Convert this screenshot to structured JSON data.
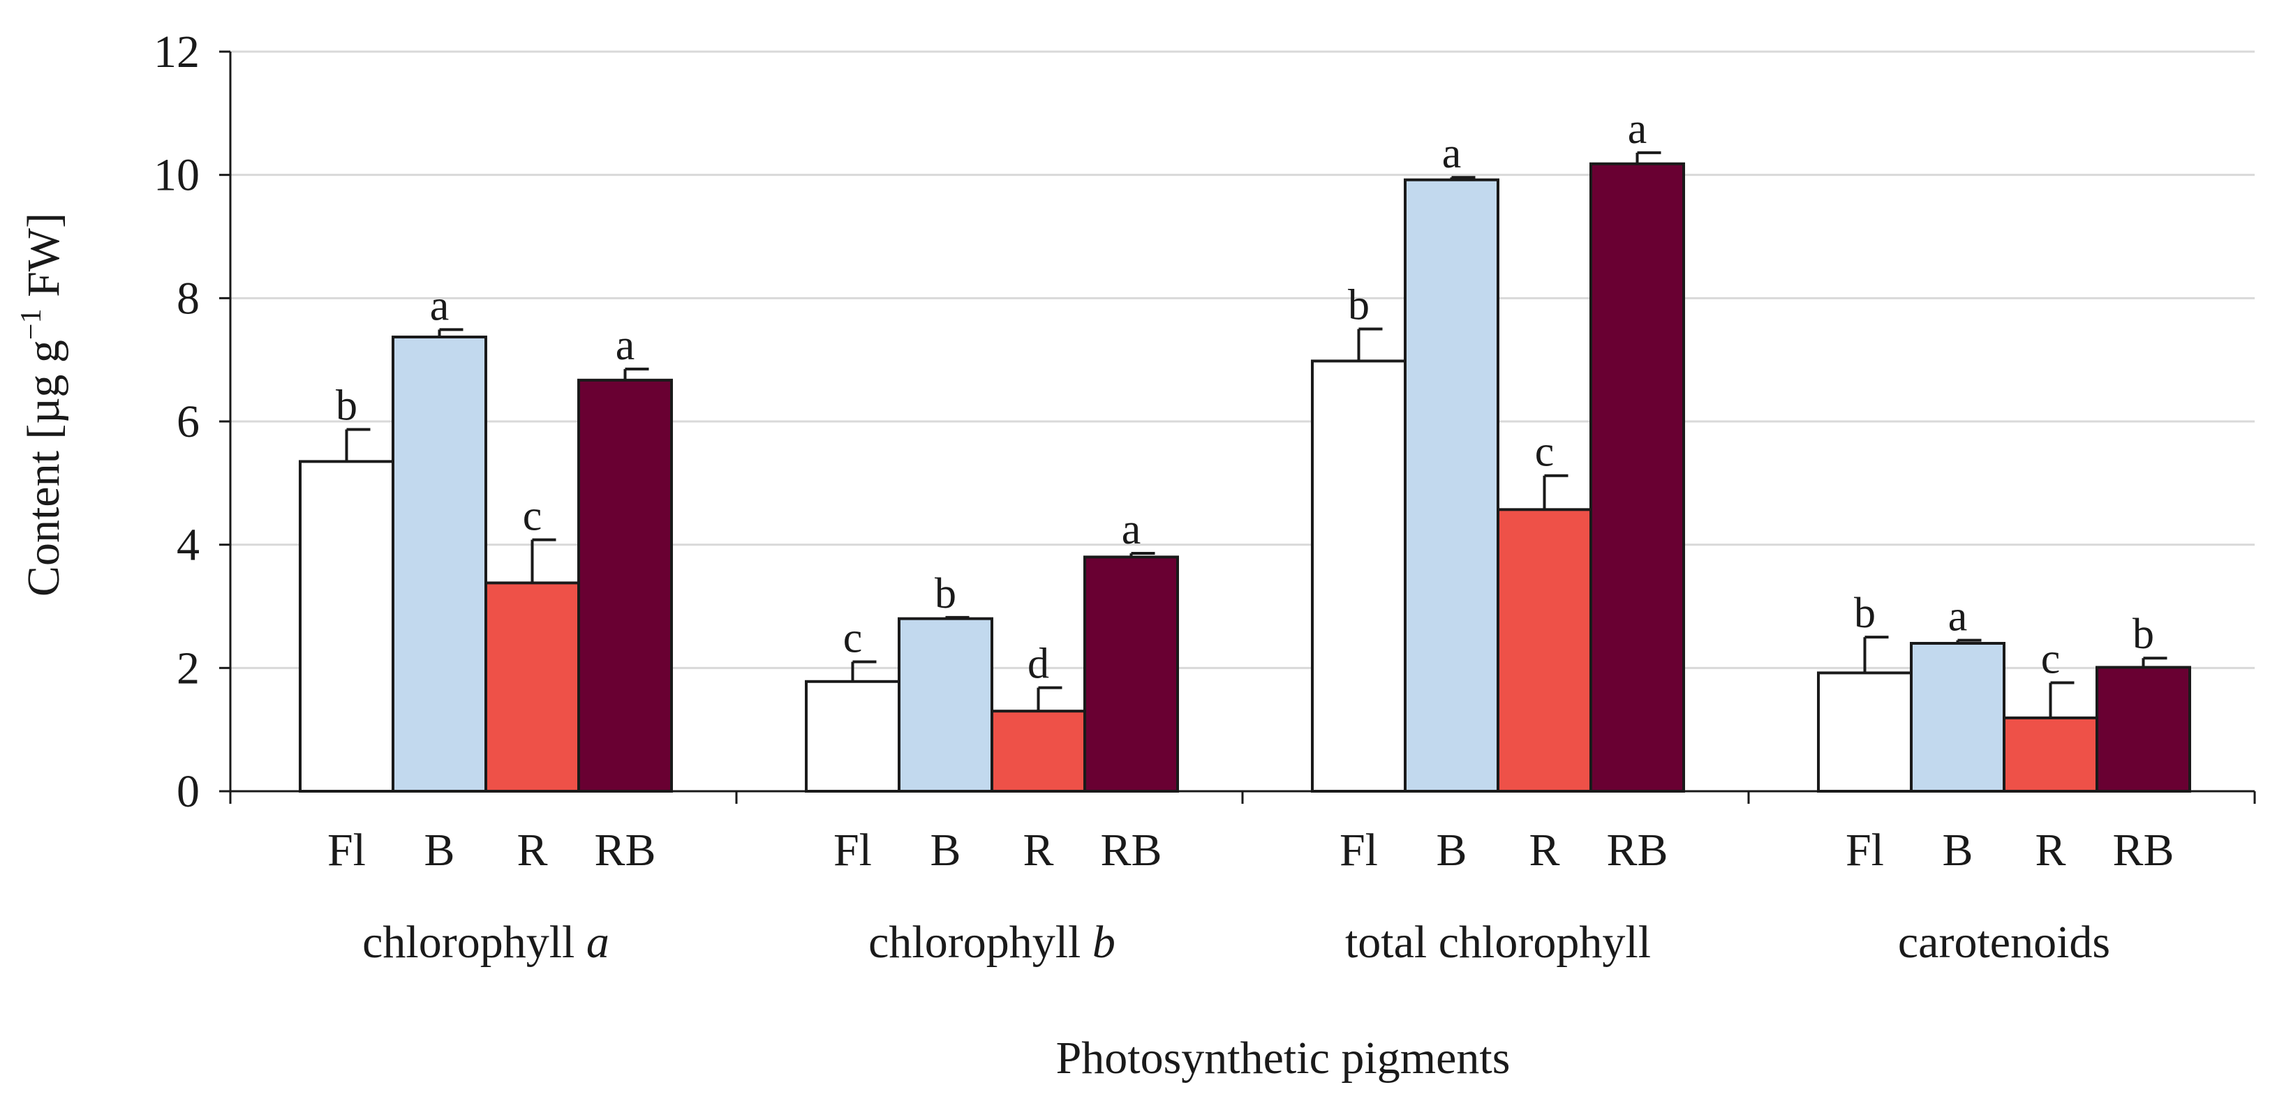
{
  "chart_data": {
    "type": "bar",
    "title": "",
    "xlabel": "Photosynthetic pigments",
    "ylabel": {
      "prefix": "Content [µg g",
      "superscript": "−1",
      "suffix": " FW]"
    },
    "ylim": [
      0,
      12
    ],
    "yticks": [
      "0",
      "2",
      "4",
      "6",
      "8",
      "10",
      "12"
    ],
    "grid": true,
    "groups": [
      {
        "label_text": "chlorophyll ",
        "label_italic": "a"
      },
      {
        "label_text": "chlorophyll ",
        "label_italic": "b"
      },
      {
        "label_text": "total chlorophyll",
        "label_italic": ""
      },
      {
        "label_text": "carotenoids",
        "label_italic": ""
      }
    ],
    "series": [
      {
        "name": "Fl",
        "color": "#ffffff",
        "values": [
          5.35,
          1.78,
          6.98,
          1.92
        ],
        "errors": [
          0.52,
          0.32,
          0.52,
          0.58
        ],
        "letters": [
          "b",
          "c",
          "b",
          "b"
        ]
      },
      {
        "name": "B",
        "color": "#c2d9ee",
        "values": [
          7.37,
          2.8,
          9.92,
          2.4
        ],
        "errors": [
          0.12,
          0.02,
          0.04,
          0.05
        ],
        "letters": [
          "a",
          "b",
          "a",
          "a"
        ]
      },
      {
        "name": "R",
        "color": "#ee5148",
        "values": [
          3.38,
          1.3,
          4.57,
          1.19
        ],
        "errors": [
          0.7,
          0.38,
          0.55,
          0.57
        ],
        "letters": [
          "c",
          "d",
          "c",
          "c"
        ]
      },
      {
        "name": "RB",
        "color": "#690032",
        "values": [
          6.67,
          3.8,
          10.18,
          2.01
        ],
        "errors": [
          0.18,
          0.06,
          0.18,
          0.15
        ],
        "letters": [
          "a",
          "a",
          "a",
          "b"
        ]
      }
    ],
    "colors": {
      "axis": "#1a1a1a",
      "grid": "#d9d9d9",
      "bar_outline": "#1a1a1a"
    }
  }
}
